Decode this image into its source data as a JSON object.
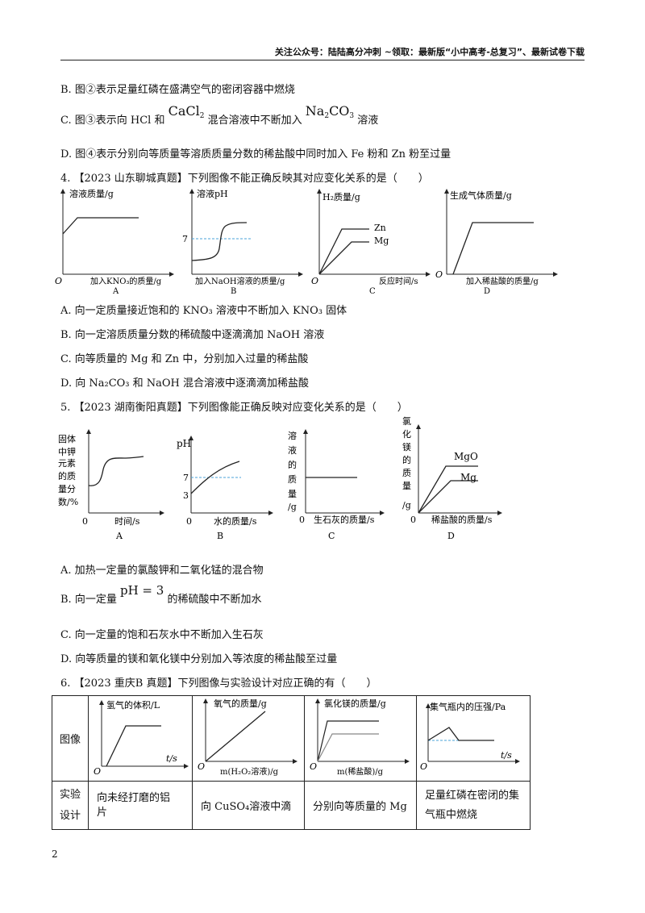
{
  "header": "关注公众号：陆陆高分冲刺  ~领取：最新版“小中高考-总复习”、最新试卷下载",
  "prev_options": {
    "B": "B. 图②表示足量红磷在盛满空气的密闭容器中燃烧",
    "C_a": "C. 图③表示向 HCl 和",
    "C_cacl2": "CaCl",
    "C_b": "混合溶液中不断加入",
    "C_na2co3": "Na",
    "C_na2co3_b": "CO",
    "C_c": "溶液",
    "D": "D. 图④表示分别向等质量等溶质质量分数的稀盐酸中同时加入 Fe 粉和 Zn 粉至过量"
  },
  "q4": {
    "stem": "4. 【2023 山东聊城真题】下列图像不能正确反映其对应变化关系的是（　　）",
    "graphs": {
      "A": {
        "ylabel": "溶液质量/g",
        "xlabel": "加入KNO₃的质量/g",
        "origin": "O",
        "letter": "A"
      },
      "B": {
        "ylabel": "溶液pH",
        "xlabel": "加入NaOH溶液的质量/g",
        "tick": "7",
        "letter": "B"
      },
      "C": {
        "ylabel": "H₂质量/g",
        "xlabel": "反应时间/s",
        "origin": "O",
        "s1": "Zn",
        "s2": "Mg",
        "letter": "C"
      },
      "D": {
        "ylabel": "生成气体质量/g",
        "xlabel": "加入稀盐酸的质量/g",
        "origin": "O",
        "letter": "D"
      }
    },
    "options": {
      "A": "A. 向一定质量接近饱和的 KNO₃ 溶液中不断加入 KNO₃ 固体",
      "B": "B. 向一定溶质质量分数的稀硫酸中逐滴滴加 NaOH 溶液",
      "C": "C. 向等质量的 Mg 和 Zn 中，分别加入过量的稀盐酸",
      "D": "D. 向 Na₂CO₃ 和 NaOH 混合溶液中逐滴滴加稀盐酸"
    }
  },
  "q5": {
    "stem": "5. 【2023 湖南衡阳真题】下列图像能正确反映对应变化关系的是（　　）",
    "graphs": {
      "A": {
        "ylabel": [
          "固体",
          "中钾",
          "元素",
          "的质",
          "量分",
          "数/%"
        ],
        "xlabel": "时间/s",
        "origin": "0",
        "letter": "A"
      },
      "B": {
        "ylabel": "pH",
        "xlabel": "水的质量/s",
        "t7": "7",
        "t3": "3",
        "origin": "0",
        "letter": "B"
      },
      "C": {
        "ylabel": [
          "溶",
          "液",
          "的",
          "质",
          "量",
          "/g"
        ],
        "xlabel": "生石灰的质量/s",
        "origin": "0",
        "letter": "C"
      },
      "D": {
        "ylabel": [
          "氯",
          "化",
          "镁",
          "的",
          "质",
          "量",
          "/g"
        ],
        "xlabel": "稀盐酸的质量/s",
        "s1": "MgO",
        "s2": "Mg",
        "origin": "0",
        "letter": "D"
      }
    },
    "options": {
      "A": "A. 加热一定量的氯酸钾和二氧化锰的混合物",
      "B_a": "B. 向一定量",
      "B_ph": "pH = 3",
      "B_b": "的稀硫酸中不断加水",
      "C": "C. 向一定量的饱和石灰水中不断加入生石灰",
      "D": "D. 向等质量的镁和氧化镁中分别加入等浓度的稀盐酸至过量"
    }
  },
  "q6": {
    "stem": "6. 【2023 重庆B 真题】下列图像与实验设计对应正确的有（　　）",
    "row1_head": "图像",
    "row2_head": [
      "实验",
      "设计"
    ],
    "graphs": [
      {
        "ylabel": "氢气的体积/L",
        "xlabel": "t/s",
        "origin": "O"
      },
      {
        "ylabel": "氧气的质量/g",
        "xlabel": "m(H₂O₂溶液)/g",
        "origin": "O"
      },
      {
        "ylabel": "氯化镁的质量/g",
        "xlabel": "m(稀盐酸)/g",
        "origin": "O"
      },
      {
        "ylabel": "集气瓶内的压强/Pa",
        "xlabel": "t/s",
        "origin": "O"
      }
    ],
    "designs": [
      [
        "向未经打磨的铝",
        "片"
      ],
      [
        "向 CuSO₄溶液中滴",
        ""
      ],
      [
        "分别向等质量的 Mg",
        ""
      ],
      [
        "足量红磷在密闭的集",
        "气瓶中燃烧"
      ]
    ]
  },
  "page_number": "2"
}
